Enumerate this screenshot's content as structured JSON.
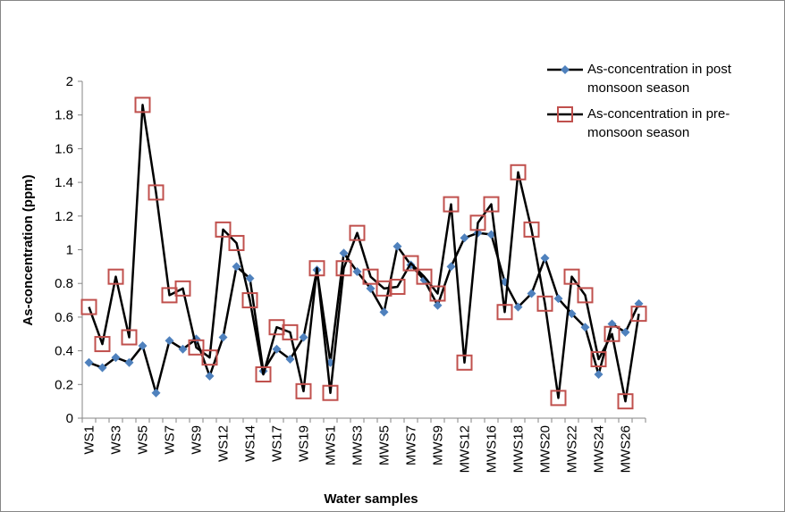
{
  "chart_data": {
    "type": "line",
    "y_label": "As-concentration (ppm)",
    "x_label": "Water samples",
    "categories": [
      "WS1",
      null,
      "WS3",
      null,
      "WS5",
      null,
      "WS7",
      null,
      "WS9",
      null,
      "WS12",
      null,
      "WS14",
      null,
      "WS17",
      null,
      "WS19",
      null,
      "MWS1",
      null,
      "MWS3",
      null,
      "MWS5",
      null,
      "MWS7",
      null,
      "MWS9",
      null,
      "MWS12",
      null,
      "MWS16",
      null,
      "MWS18",
      null,
      "MWS20",
      null,
      "MWS22",
      null,
      "MWS24",
      null,
      "MWS26",
      null
    ],
    "series": [
      {
        "name": "As-concentration in post monsoon season",
        "color": "#4f81bd",
        "marker": "diamond",
        "values": [
          0.33,
          0.3,
          0.36,
          0.33,
          0.43,
          0.15,
          0.46,
          0.41,
          0.47,
          0.25,
          0.48,
          0.9,
          0.83,
          0.28,
          0.41,
          0.35,
          0.48,
          0.88,
          0.33,
          0.98,
          0.87,
          0.77,
          0.63,
          1.02,
          0.91,
          0.82,
          0.67,
          0.9,
          1.07,
          1.1,
          1.09,
          0.81,
          0.66,
          0.74,
          0.95,
          0.71,
          0.62,
          0.54,
          0.26,
          0.56,
          0.51,
          0.68
        ]
      },
      {
        "name": "As-concentration in pre-monsoon season",
        "color": "#c0504d",
        "marker": "square",
        "values": [
          0.66,
          0.44,
          0.84,
          0.48,
          1.86,
          1.34,
          0.73,
          0.77,
          0.42,
          0.36,
          1.12,
          1.04,
          0.7,
          0.26,
          0.54,
          0.51,
          0.16,
          0.89,
          0.15,
          0.89,
          1.1,
          0.84,
          0.77,
          0.78,
          0.92,
          0.84,
          0.74,
          1.27,
          0.33,
          1.16,
          1.27,
          0.63,
          1.46,
          1.12,
          0.68,
          0.12,
          0.84,
          0.73,
          0.35,
          0.5,
          0.1,
          0.62
        ]
      }
    ],
    "ylim": [
      0,
      2
    ],
    "yticks": [
      0,
      0.2,
      0.4,
      0.6,
      0.8,
      1,
      1.2,
      1.4,
      1.6,
      1.8,
      2
    ],
    "grid": false,
    "legend": "top-right",
    "line_color": "#000000"
  }
}
